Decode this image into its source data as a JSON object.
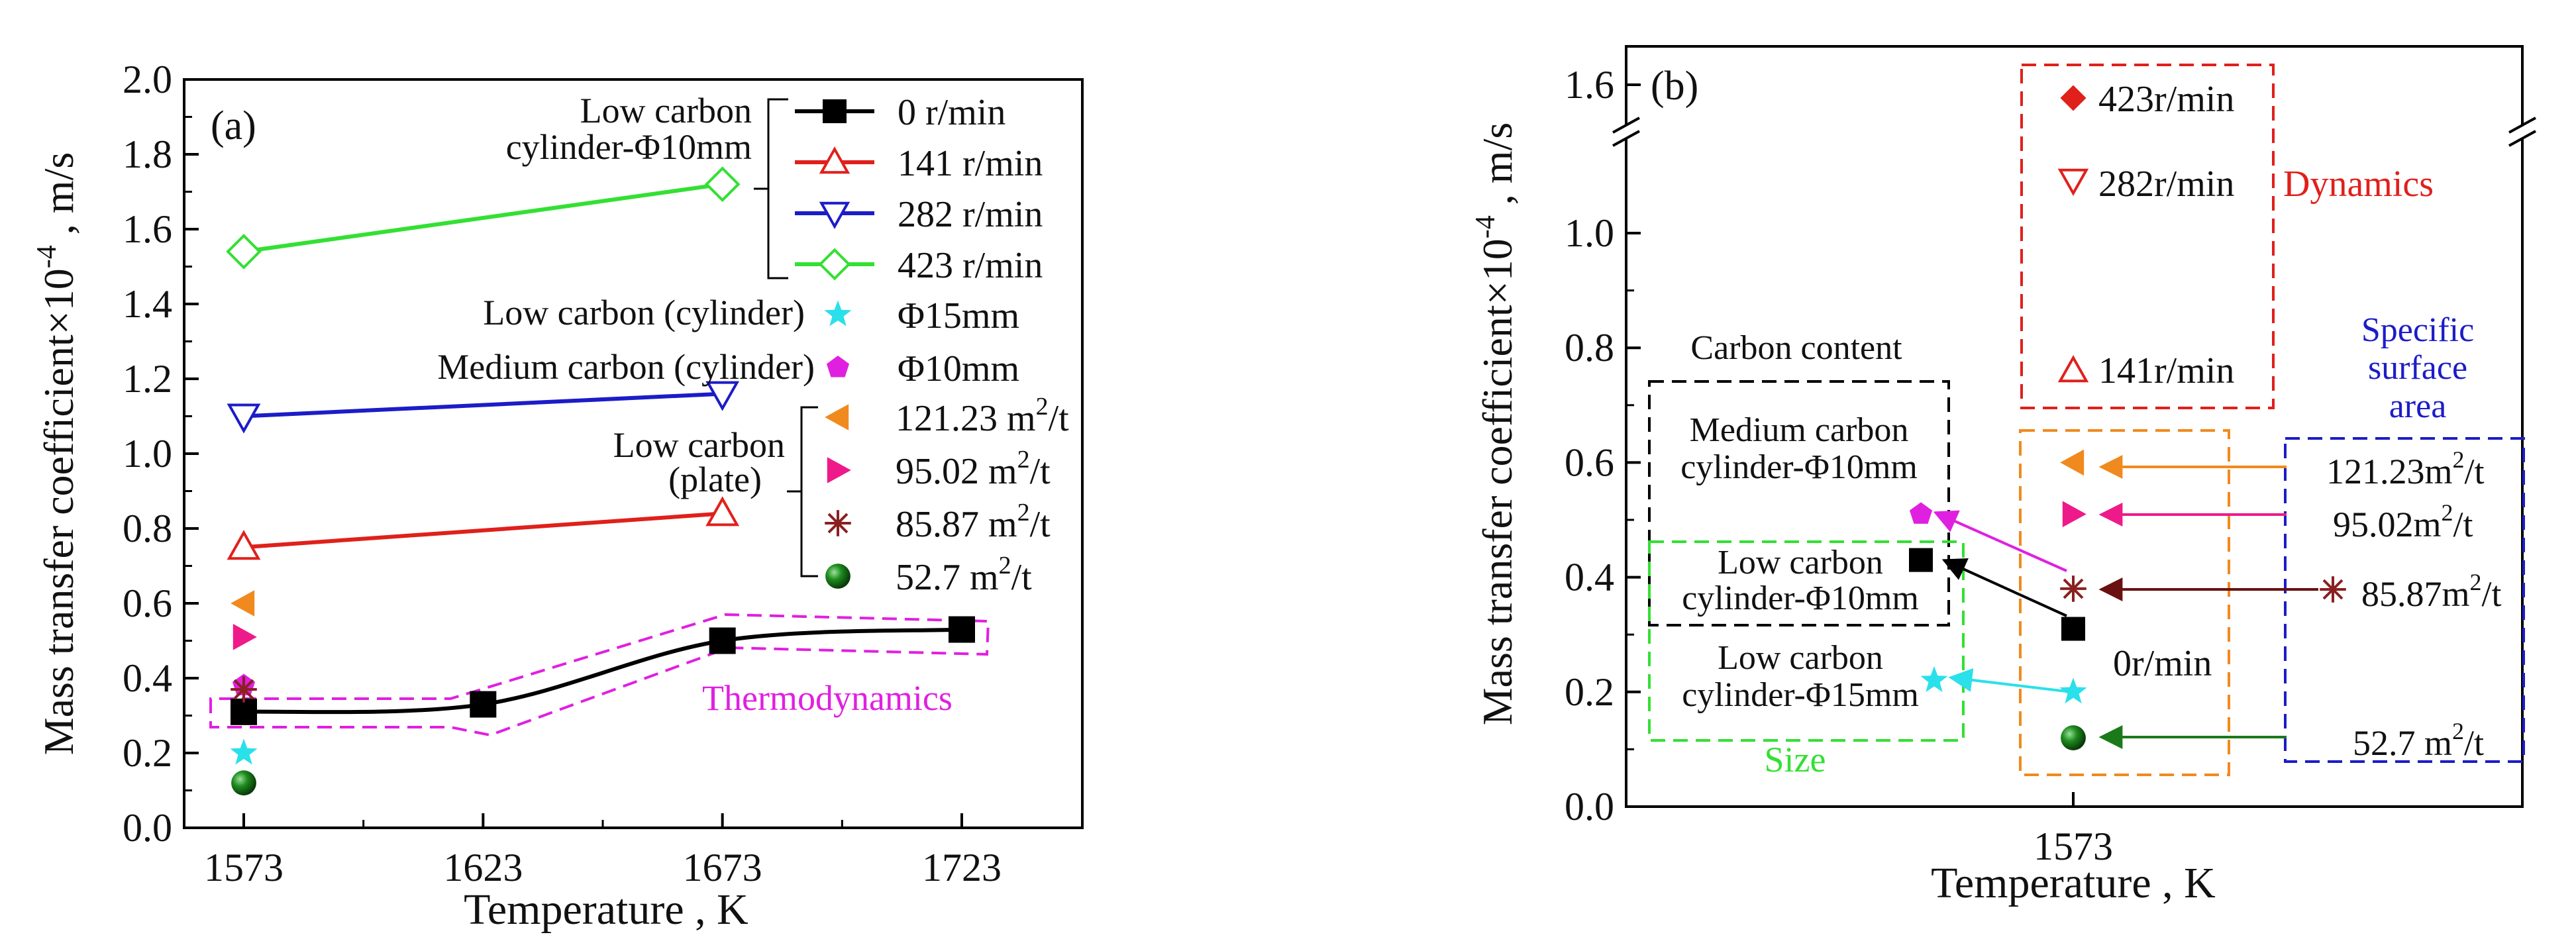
{
  "chart_data": [
    {
      "panel": "(a)",
      "type": "line",
      "title": "",
      "xlabel": "Temperature , K",
      "ylabel_main": "Mass transfer coefficient×10",
      "ylabel_exp": "-4",
      "ylabel_unit": " , m/s",
      "x_ticks": [
        1573,
        1623,
        1673,
        1723
      ],
      "xlim": [
        1560,
        1750
      ],
      "y_ticks": [
        "0.0",
        "0.2",
        "0.4",
        "0.6",
        "0.8",
        "1.0",
        "1.2",
        "1.4",
        "1.6",
        "1.8",
        "2.0"
      ],
      "ylim": [
        0,
        2.0
      ],
      "series": [
        {
          "name": "0  r/min",
          "color": "#000000",
          "marker": "square",
          "x": [
            1573,
            1623,
            1673,
            1723
          ],
          "y": [
            0.31,
            0.33,
            0.5,
            0.53
          ]
        },
        {
          "name": "141 r/min",
          "color": "#e0201b",
          "marker": "triangle-up-open",
          "x": [
            1573,
            1673
          ],
          "y": [
            0.75,
            0.84
          ]
        },
        {
          "name": "282  r/min",
          "color": "#1c1cc8",
          "marker": "triangle-down-open",
          "x": [
            1573,
            1673
          ],
          "y": [
            1.1,
            1.16
          ]
        },
        {
          "name": "423  r/min",
          "color": "#33e033",
          "marker": "diamond-open",
          "x": [
            1573,
            1673
          ],
          "y": [
            1.54,
            1.72
          ]
        }
      ],
      "points": [
        {
          "name": "Φ15mm",
          "color": "#2ae0ea",
          "marker": "star",
          "x": 1573,
          "y": 0.2
        },
        {
          "name": "Φ10mm",
          "color": "#e020e0",
          "marker": "pentagon",
          "x": 1573,
          "y": 0.38
        },
        {
          "name": "121.23",
          "color": "#f08a1e",
          "marker": "triangle-left",
          "x": 1573,
          "y": 0.6
        },
        {
          "name": "95.02",
          "color": "#ee1a8a",
          "marker": "triangle-right",
          "x": 1573,
          "y": 0.51
        },
        {
          "name": "85.87",
          "color": "#8a2020",
          "marker": "asterisk",
          "x": 1573,
          "y": 0.37
        },
        {
          "name": "52.7",
          "color": "#1a8a1a",
          "marker": "sphere",
          "x": 1573,
          "y": 0.12
        }
      ],
      "legend": {
        "group1_label_l1": "Low carbon",
        "group1_label_l2": "cylinder-Φ10mm",
        "rpm": [
          "0  r/min",
          "141 r/min",
          "282  r/min",
          "423  r/min"
        ],
        "low_cyl_label": "Low carbon (cylinder)",
        "low_cyl_value": "Φ15mm",
        "med_cyl_label": "Medium carbon (cylinder)",
        "med_cyl_value": "Φ10mm",
        "plate_label_l1": "Low carbon",
        "plate_label_l2": "(plate)",
        "plate_values": [
          "121.23",
          "95.02",
          "85.87",
          "52.7"
        ],
        "unit": "m",
        "unit_exp": "2",
        "unit_tail": "/t"
      },
      "panel_label": "(a)",
      "annotation": "Thermodynamics"
    },
    {
      "panel": "(b)",
      "type": "scatter",
      "xlabel": "Temperature , K",
      "ylabel_main": "Mass transfer coefficient×10",
      "ylabel_exp": "-4",
      "ylabel_unit": " , m/s",
      "x_ticks": [
        1573
      ],
      "y_ticks": [
        "0.0",
        "0.2",
        "0.4",
        "0.6",
        "0.8",
        "1.0",
        "1.6"
      ],
      "ylim": [
        0,
        1.6
      ],
      "axis_break": "between 1.0 and 1.6",
      "points": [
        {
          "name": "423r/min",
          "color": "#e0201b",
          "marker": "diamond",
          "x": 1573,
          "y": 1.6
        },
        {
          "name": "282r/min",
          "color": "#e0201b",
          "marker": "triangle-down-open",
          "x": 1573,
          "y": 1.1
        },
        {
          "name": "141r/min",
          "color": "#e0201b",
          "marker": "triangle-up-open",
          "x": 1573,
          "y": 0.75
        },
        {
          "name": "121.23",
          "color": "#f08a1e",
          "marker": "triangle-left",
          "x": 1573,
          "y": 0.6
        },
        {
          "name": "95.02",
          "color": "#ee1a8a",
          "marker": "triangle-right",
          "x": 1573,
          "y": 0.51
        },
        {
          "name": "85.87",
          "color": "#8a2020",
          "marker": "asterisk",
          "x": 1573,
          "y": 0.38
        },
        {
          "name": "0r/min",
          "color": "#000000",
          "marker": "square",
          "x": 1573,
          "y": 0.31
        },
        {
          "name": "Φ15mm",
          "color": "#2ae0ea",
          "marker": "star",
          "x": 1573,
          "y": 0.2
        },
        {
          "name": "52.7",
          "color": "#1a8a1a",
          "marker": "sphere",
          "x": 1573,
          "y": 0.12
        },
        {
          "name": "Medium carbon Φ10mm",
          "color": "#e020e0",
          "marker": "pentagon",
          "x": "left",
          "y": 0.51
        },
        {
          "name": "Low carbon Φ10mm",
          "color": "#000000",
          "marker": "square",
          "x": "left",
          "y": 0.43
        },
        {
          "name": "Low carbon Φ15mm",
          "color": "#2ae0ea",
          "marker": "star",
          "x": "left",
          "y": 0.22
        }
      ],
      "labels": {
        "rpm_423": "423r/min",
        "rpm_282": "282r/min",
        "rpm_141": "141r/min",
        "rpm_0": "0r/min",
        "dynamics": "Dynamics",
        "carbon_content": "Carbon content",
        "med_l1": "Medium carbon",
        "med_l2": "cylinder-Φ10mm",
        "low10_l1": "Low carbon",
        "low10_l2": "cylinder-Φ10mm",
        "low15_l1": "Low carbon",
        "low15_l2": "cylinder-Φ15mm",
        "size": "Size",
        "ssa_l1": "Specific",
        "ssa_l2": "surface",
        "ssa_l3": "area",
        "ssa_values": [
          "121.23",
          "95.02",
          "85.87",
          "52.7 "
        ],
        "unit": "m",
        "unit_exp": "2",
        "unit_tail": "/t"
      },
      "panel_label": "(b)"
    }
  ]
}
